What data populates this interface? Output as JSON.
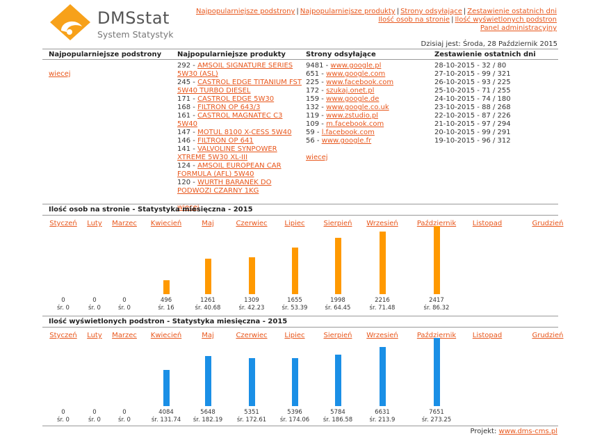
{
  "header": {
    "logo_text": "DMSstat",
    "logo_sub": "System Statystyk",
    "nav": [
      "Najpopularniejsze podstrony",
      "Najpopularniejsze produkty",
      "Strony odsyłające",
      "Zestawienie ostatnich dni",
      "Ilość osob na stronie",
      "Ilość wyświetlonych podstron",
      "Panel administracyjny"
    ],
    "date_label": "Dzisiaj jest: Środa, 28 Październik 2015"
  },
  "table": {
    "headers": [
      "Najpopularniejsze podstrony",
      "Najpopularniejsze produkty",
      "Strony odsyłające",
      "Zestawienie ostatnich dni"
    ],
    "pages_more": "wiecej",
    "products": [
      {
        "count": "292 - ",
        "name": "AMSOIL SIGNATURE SERIES 5W30 (ASL)"
      },
      {
        "count": "245 - ",
        "name": "CASTROL EDGE TITANIUM FST 5W40 TURBO DIESEL"
      },
      {
        "count": "171 - ",
        "name": "CASTROL EDGE 5W30"
      },
      {
        "count": "168 - ",
        "name": "FILTRON OP 643/3"
      },
      {
        "count": "161 - ",
        "name": "CASTROL MAGNATEC C3 5W40"
      },
      {
        "count": "147 - ",
        "name": "MOTUL 8100 X-CESS 5W40"
      },
      {
        "count": "146 - ",
        "name": "FILTRON OP 641"
      },
      {
        "count": "141 - ",
        "name": "VALVOLINE SYNPOWER XTREME 5W30 XL-III"
      },
      {
        "count": "124 - ",
        "name": "AMSOIL EUROPEAN CAR FORMULA (AFL) 5W40"
      },
      {
        "count": "120 - ",
        "name": "WURTH BARANEK DO PODWOZI CZARNY 1KG"
      }
    ],
    "products_more": "wiecej",
    "referrers": [
      {
        "count": "9481 - ",
        "site": "www.google.pl"
      },
      {
        "count": "651 - ",
        "site": "www.google.com"
      },
      {
        "count": "225 - ",
        "site": "www.facebook.com"
      },
      {
        "count": "172 - ",
        "site": "szukaj.onet.pl"
      },
      {
        "count": "159 - ",
        "site": "www.google.de"
      },
      {
        "count": "132 - ",
        "site": "www.google.co.uk"
      },
      {
        "count": "119 - ",
        "site": "www.zstudio.pl"
      },
      {
        "count": "109 - ",
        "site": "m.facebook.com"
      },
      {
        "count": "59 - ",
        "site": "l.facebook.com"
      },
      {
        "count": "56 - ",
        "site": "www.google.fr"
      }
    ],
    "referrers_more": "wiecej",
    "days": [
      "28-10-2015 - 32 / 80",
      "27-10-2015 - 99 / 321",
      "26-10-2015 - 93 / 225",
      "25-10-2015 - 71 / 255",
      "24-10-2015 - 74 / 180",
      "23-10-2015 - 88 / 268",
      "22-10-2015 - 87 / 226",
      "21-10-2015 - 97 / 294",
      "20-10-2015 - 99 / 291",
      "19-10-2015 - 96 / 312"
    ]
  },
  "chart_data": [
    {
      "type": "bar",
      "title": "Ilość osob na stronie - Statystyka miesięczna - 2015",
      "categories": [
        "Styczeń",
        "Luty",
        "Marzec",
        "Kwiecień",
        "Maj",
        "Czerwiec",
        "Lipiec",
        "Sierpień",
        "Wrzesień",
        "Październik",
        "Listopad",
        "Grudzień"
      ],
      "values": [
        0,
        0,
        0,
        496,
        1261,
        1309,
        1655,
        1998,
        2216,
        2417,
        null,
        null
      ],
      "averages": [
        "śr. 0",
        "śr. 0",
        "śr. 0",
        "śr. 16",
        "śr. 40.68",
        "śr. 42.23",
        "śr. 53.39",
        "śr. 64.45",
        "śr. 71.48",
        "śr. 86.32",
        "",
        ""
      ],
      "color": "#ff9900",
      "ymax": 2417
    },
    {
      "type": "bar",
      "title": "Ilość wyświetlonych podstron - Statystyka miesięczna - 2015",
      "categories": [
        "Styczeń",
        "Luty",
        "Marzec",
        "Kwiecień",
        "Maj",
        "Czerwiec",
        "Lipiec",
        "Sierpień",
        "Wrzesień",
        "Październik",
        "Listopad",
        "Grudzień"
      ],
      "values": [
        0,
        0,
        0,
        4084,
        5648,
        5351,
        5396,
        5784,
        6631,
        7651,
        null,
        null
      ],
      "averages": [
        "śr. 0",
        "śr. 0",
        "śr. 0",
        "śr. 131.74",
        "śr. 182.19",
        "śr. 172.61",
        "śr. 174.06",
        "śr. 186.58",
        "śr. 213.9",
        "śr. 273.25",
        "",
        ""
      ],
      "color": "#1a8fe6",
      "ymax": 7651
    }
  ],
  "footer": {
    "label": "Projekt: ",
    "link": "www.dms-cms.pl"
  }
}
